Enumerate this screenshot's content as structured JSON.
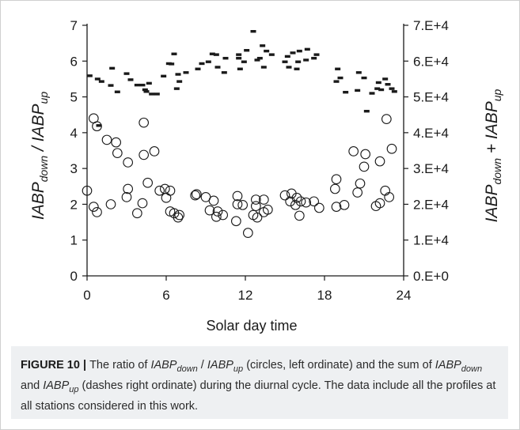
{
  "chart_data": {
    "type": "scatter",
    "xlabel": "Solar day time",
    "x_ticks": [
      "0",
      "6",
      "12",
      "18",
      "24"
    ],
    "xlim": [
      0,
      24
    ],
    "y_left": {
      "label_parts": [
        "IABP",
        "down",
        " / IABP",
        "up"
      ],
      "ticks": [
        "0",
        "1",
        "2",
        "3",
        "4",
        "5",
        "6",
        "7"
      ],
      "ylim": [
        0,
        7
      ]
    },
    "y_right": {
      "label_parts": [
        "IABP",
        "down",
        " + IABP",
        "up"
      ],
      "ticks": [
        "0.E+0",
        "1.E+4",
        "2.E+4",
        "3.E+4",
        "4.E+4",
        "5.E+4",
        "6.E+4",
        "7.E+4"
      ],
      "ylim": [
        0,
        70000
      ]
    },
    "series": [
      {
        "marker": "circle",
        "axis": "left",
        "points": [
          [
            0.0,
            2.38
          ],
          [
            0.5,
            1.93
          ],
          [
            0.5,
            4.4
          ],
          [
            0.75,
            1.78
          ],
          [
            0.75,
            4.18
          ],
          [
            1.5,
            3.8
          ],
          [
            1.8,
            2.0
          ],
          [
            2.2,
            3.73
          ],
          [
            2.3,
            3.43
          ],
          [
            3.0,
            2.2
          ],
          [
            3.1,
            2.43
          ],
          [
            3.1,
            3.17
          ],
          [
            3.8,
            1.75
          ],
          [
            4.2,
            2.03
          ],
          [
            4.3,
            3.38
          ],
          [
            4.3,
            4.28
          ],
          [
            4.6,
            2.6
          ],
          [
            5.1,
            3.48
          ],
          [
            5.5,
            2.38
          ],
          [
            5.9,
            2.43
          ],
          [
            6.0,
            2.18
          ],
          [
            6.3,
            2.38
          ],
          [
            6.3,
            1.8
          ],
          [
            6.6,
            1.75
          ],
          [
            6.9,
            1.63
          ],
          [
            7.0,
            1.7
          ],
          [
            8.2,
            2.25
          ],
          [
            8.3,
            2.28
          ],
          [
            9.0,
            2.2
          ],
          [
            9.3,
            1.83
          ],
          [
            9.6,
            2.1
          ],
          [
            9.8,
            1.65
          ],
          [
            9.9,
            1.8
          ],
          [
            10.3,
            1.7
          ],
          [
            11.3,
            1.53
          ],
          [
            11.4,
            2.0
          ],
          [
            11.4,
            2.23
          ],
          [
            11.8,
            1.98
          ],
          [
            12.2,
            1.2
          ],
          [
            12.6,
            1.7
          ],
          [
            12.8,
            1.95
          ],
          [
            12.8,
            2.13
          ],
          [
            12.9,
            1.63
          ],
          [
            13.4,
            1.78
          ],
          [
            13.4,
            2.13
          ],
          [
            13.7,
            1.85
          ],
          [
            15.0,
            2.25
          ],
          [
            15.4,
            2.08
          ],
          [
            15.5,
            2.3
          ],
          [
            15.8,
            1.98
          ],
          [
            15.9,
            2.18
          ],
          [
            16.1,
            1.68
          ],
          [
            16.2,
            2.08
          ],
          [
            16.6,
            2.05
          ],
          [
            17.2,
            2.08
          ],
          [
            17.6,
            1.9
          ],
          [
            18.8,
            2.43
          ],
          [
            18.9,
            2.7
          ],
          [
            18.9,
            1.93
          ],
          [
            19.5,
            1.98
          ],
          [
            20.2,
            3.48
          ],
          [
            20.5,
            2.33
          ],
          [
            20.7,
            2.58
          ],
          [
            21.0,
            3.05
          ],
          [
            21.1,
            3.4
          ],
          [
            21.9,
            1.95
          ],
          [
            22.2,
            2.03
          ],
          [
            22.2,
            3.2
          ],
          [
            22.6,
            2.38
          ],
          [
            22.7,
            4.38
          ],
          [
            22.9,
            2.2
          ],
          [
            23.1,
            3.55
          ]
        ]
      },
      {
        "marker": "dash",
        "axis": "right",
        "points": [
          [
            0.2,
            55900
          ],
          [
            0.8,
            55000
          ],
          [
            0.9,
            42000
          ],
          [
            1.1,
            54300
          ],
          [
            1.8,
            53200
          ],
          [
            1.9,
            58000
          ],
          [
            2.3,
            51400
          ],
          [
            3.0,
            56500
          ],
          [
            3.3,
            54800
          ],
          [
            3.8,
            53300
          ],
          [
            4.2,
            53300
          ],
          [
            4.4,
            52000
          ],
          [
            4.5,
            51500
          ],
          [
            4.7,
            53800
          ],
          [
            4.9,
            50800
          ],
          [
            5.3,
            50800
          ],
          [
            5.8,
            55800
          ],
          [
            6.2,
            59300
          ],
          [
            6.4,
            59200
          ],
          [
            6.6,
            62000
          ],
          [
            6.8,
            52300
          ],
          [
            6.9,
            56300
          ],
          [
            7.0,
            54300
          ],
          [
            7.5,
            56800
          ],
          [
            8.4,
            57800
          ],
          [
            8.7,
            59300
          ],
          [
            9.2,
            59800
          ],
          [
            9.5,
            62000
          ],
          [
            9.8,
            61800
          ],
          [
            9.9,
            58300
          ],
          [
            10.4,
            56800
          ],
          [
            10.5,
            60800
          ],
          [
            11.5,
            60800
          ],
          [
            11.5,
            61800
          ],
          [
            11.6,
            57800
          ],
          [
            11.9,
            59800
          ],
          [
            12.1,
            63000
          ],
          [
            12.6,
            68300
          ],
          [
            12.9,
            60300
          ],
          [
            13.1,
            60800
          ],
          [
            13.3,
            64300
          ],
          [
            13.4,
            58300
          ],
          [
            13.6,
            62800
          ],
          [
            14.0,
            61800
          ],
          [
            15.0,
            59800
          ],
          [
            15.2,
            61300
          ],
          [
            15.3,
            58300
          ],
          [
            15.6,
            62300
          ],
          [
            15.9,
            57800
          ],
          [
            16.0,
            59800
          ],
          [
            16.1,
            62800
          ],
          [
            16.6,
            60300
          ],
          [
            16.7,
            63300
          ],
          [
            17.2,
            60800
          ],
          [
            17.4,
            61800
          ],
          [
            18.9,
            54300
          ],
          [
            19.0,
            57800
          ],
          [
            19.2,
            55300
          ],
          [
            19.6,
            51300
          ],
          [
            20.5,
            51800
          ],
          [
            20.6,
            56800
          ],
          [
            21.0,
            55300
          ],
          [
            21.2,
            46000
          ],
          [
            21.6,
            51000
          ],
          [
            22.0,
            52300
          ],
          [
            22.1,
            54000
          ],
          [
            22.3,
            52000
          ],
          [
            22.6,
            55000
          ],
          [
            22.8,
            53500
          ],
          [
            23.1,
            52300
          ],
          [
            23.3,
            51500
          ]
        ]
      }
    ]
  },
  "caption": {
    "label": "FIGURE 10",
    "separator": " | ",
    "segments": [
      {
        "text": "The ratio of "
      },
      {
        "text": "IABP",
        "italic": true
      },
      {
        "text": "down",
        "italic": true,
        "sub": true
      },
      {
        "text": " / "
      },
      {
        "text": "IABP",
        "italic": true
      },
      {
        "text": "up",
        "italic": true,
        "sub": true
      },
      {
        "text": " (circles, left ordinate) and the sum of "
      },
      {
        "text": "IABP",
        "italic": true
      },
      {
        "text": "down",
        "italic": true,
        "sub": true
      },
      {
        "text": " and "
      },
      {
        "text": "IABP",
        "italic": true
      },
      {
        "text": "up",
        "italic": true,
        "sub": true
      },
      {
        "text": " (dashes right ordinate) during the diurnal cycle. The data include all the profiles at all stations considered in this work."
      }
    ]
  }
}
